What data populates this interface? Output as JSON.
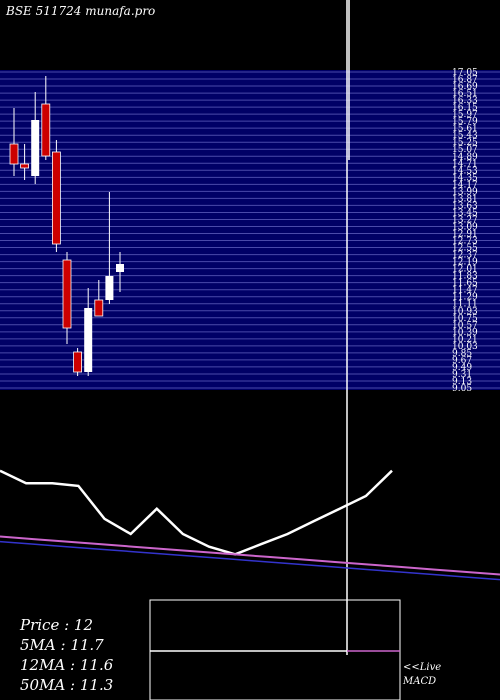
{
  "header": {
    "title": "BSE 511724  munafa.pro"
  },
  "legend": {
    "price": "Price   : 12",
    "ma5": "5MA : 11.7",
    "ma12": "12MA : 11.6",
    "ma50": "50MA : 11.3"
  },
  "macd_box": {
    "label_line1": "<<Live",
    "label_line2": "MACD"
  },
  "colors": {
    "up": "#ffffff",
    "down": "#cc0000",
    "band_bg": "#000066",
    "band_line": "#4a4aaa",
    "ma_purple": "#cc66cc",
    "ma_blue": "#3333cc"
  },
  "chart_data": [
    {
      "type": "candlestick",
      "title": "BSE 511724  munafa.pro",
      "ylim": [
        9.05,
        17.05
      ],
      "y_tick_labels": [
        "17.05",
        "16.87",
        "16.69",
        "16.51",
        "16.33",
        "16.15",
        "15.97",
        "15.79",
        "15.61",
        "15.43",
        "15.25",
        "15.07",
        "14.89",
        "14.71",
        "14.53",
        "14.35",
        "14.17",
        "13.99",
        "13.81",
        "13.63",
        "13.45",
        "13.27",
        "13.09",
        "12.91",
        "12.73",
        "12.55",
        "12.37",
        "12.19",
        "12.01",
        "11.83",
        "11.65",
        "11.47",
        "11.29",
        "11.11",
        "10.93",
        "10.75",
        "10.57",
        "10.39",
        "10.21",
        "10.03",
        "9.85",
        "9.67",
        "9.49",
        "9.31",
        "9.13",
        "9.05"
      ],
      "candles": [
        {
          "o": 15.2,
          "h": 16.1,
          "l": 14.4,
          "c": 14.7
        },
        {
          "o": 14.7,
          "h": 15.2,
          "l": 14.3,
          "c": 14.6
        },
        {
          "o": 14.4,
          "h": 16.5,
          "l": 14.2,
          "c": 15.8
        },
        {
          "o": 16.2,
          "h": 16.9,
          "l": 14.8,
          "c": 14.9
        },
        {
          "o": 15.0,
          "h": 15.3,
          "l": 12.5,
          "c": 12.7
        },
        {
          "o": 12.3,
          "h": 12.5,
          "l": 10.2,
          "c": 10.6
        },
        {
          "o": 10.0,
          "h": 10.1,
          "l": 9.4,
          "c": 9.5
        },
        {
          "o": 9.5,
          "h": 11.6,
          "l": 9.4,
          "c": 11.1
        },
        {
          "o": 11.3,
          "h": 11.8,
          "l": 10.9,
          "c": 10.9
        },
        {
          "o": 11.3,
          "h": 14.0,
          "l": 11.2,
          "c": 11.9
        },
        {
          "o": 12.0,
          "h": 12.5,
          "l": 11.5,
          "c": 12.2
        }
      ]
    },
    {
      "type": "line",
      "series": [
        {
          "values": [
            11.55,
            11.5,
            11.5,
            11.49,
            11.36,
            11.3,
            11.4,
            11.3,
            11.25,
            11.22,
            11.26,
            11.3,
            11.35,
            11.4,
            11.45,
            11.55
          ]
        },
        {
          "values": [
            11.29,
            11.28,
            11.27,
            11.26,
            11.25,
            11.24,
            11.23,
            11.22,
            11.21,
            11.2,
            11.19,
            11.18,
            11.17,
            11.16,
            11.15,
            11.14
          ]
        },
        {
          "values": [
            11.27,
            11.26,
            11.25,
            11.24,
            11.23,
            11.22,
            11.21,
            11.2,
            11.19,
            11.18,
            11.17,
            11.16,
            11.15,
            11.14,
            11.13,
            11.12
          ]
        }
      ]
    }
  ]
}
